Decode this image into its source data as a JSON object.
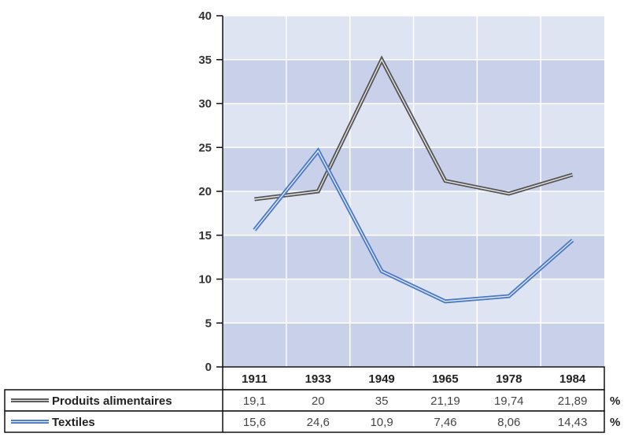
{
  "chart_data": {
    "type": "line",
    "categories": [
      "1911",
      "1933",
      "1949",
      "1965",
      "1978",
      "1984"
    ],
    "ylim": [
      0,
      40
    ],
    "yticks": [
      "0",
      "5",
      "10",
      "15",
      "20",
      "25",
      "30",
      "35",
      "40"
    ],
    "grid": true,
    "series": [
      {
        "name": "Produits alimentaires",
        "values": [
          19.1,
          20,
          35,
          21.19,
          19.74,
          21.89
        ],
        "labels": [
          "19,1",
          "20",
          "35",
          "21,19",
          "19,74",
          "21,89"
        ],
        "unit": "%",
        "color": "#555555"
      },
      {
        "name": "Textiles",
        "values": [
          15.6,
          24.6,
          10.9,
          7.46,
          8.06,
          14.43
        ],
        "labels": [
          "15,6",
          "24,6",
          "10,9",
          "7,46",
          "8,06",
          "14,43"
        ],
        "unit": "%",
        "color": "#4a78c8"
      }
    ],
    "colors": {
      "plot_band_light": "#dfe4f3",
      "plot_band_dark": "#c9d0ea",
      "grid": "#ffffff",
      "axis": "#111111"
    }
  }
}
